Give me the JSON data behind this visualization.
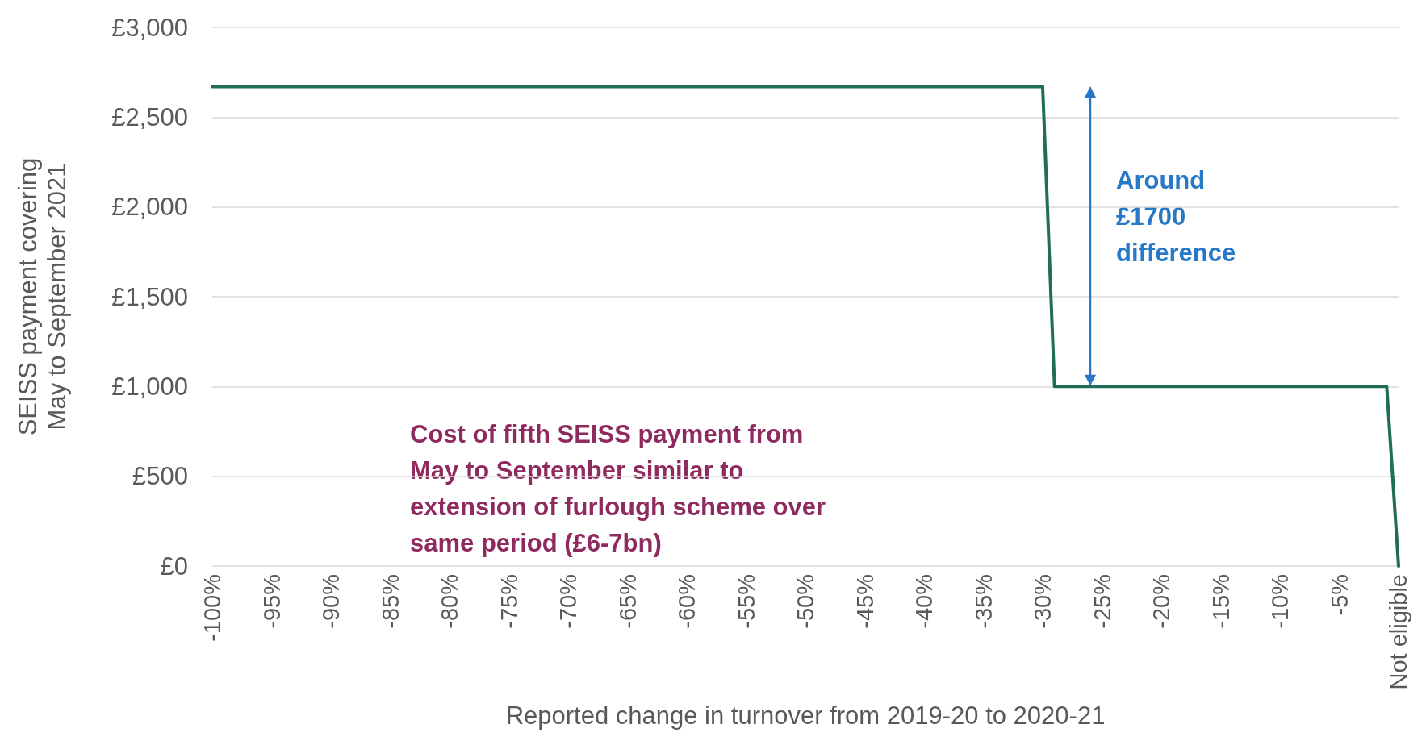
{
  "chart_data": {
    "type": "line",
    "xlabel": "Reported change in turnover from 2019-20 to 2020-21",
    "ylabel": "SEISS payment covering\nMay to September 2021",
    "categories": [
      "-100%",
      null,
      null,
      null,
      null,
      "-95%",
      null,
      null,
      null,
      null,
      "-90%",
      null,
      null,
      null,
      null,
      "-85%",
      null,
      null,
      null,
      null,
      "-80%",
      null,
      null,
      null,
      null,
      "-75%",
      null,
      null,
      null,
      null,
      "-70%",
      null,
      null,
      null,
      null,
      "-65%",
      null,
      null,
      null,
      null,
      "-60%",
      null,
      null,
      null,
      null,
      "-55%",
      null,
      null,
      null,
      null,
      "-50%",
      null,
      null,
      null,
      null,
      "-45%",
      null,
      null,
      null,
      null,
      "-40%",
      null,
      null,
      null,
      null,
      "-35%",
      null,
      null,
      null,
      null,
      "-30%",
      null,
      null,
      null,
      null,
      "-25%",
      null,
      null,
      null,
      null,
      "-20%",
      null,
      null,
      null,
      null,
      "-15%",
      null,
      null,
      null,
      null,
      "-10%",
      null,
      null,
      null,
      null,
      "-5%",
      null,
      null,
      null,
      null,
      "Not eligible"
    ],
    "series": [
      {
        "color": "#1f6e55",
        "values": [
          2670,
          2670,
          2670,
          2670,
          2670,
          2670,
          2670,
          2670,
          2670,
          2670,
          2670,
          2670,
          2670,
          2670,
          2670,
          2670,
          2670,
          2670,
          2670,
          2670,
          2670,
          2670,
          2670,
          2670,
          2670,
          2670,
          2670,
          2670,
          2670,
          2670,
          2670,
          2670,
          2670,
          2670,
          2670,
          2670,
          2670,
          2670,
          2670,
          2670,
          2670,
          2670,
          2670,
          2670,
          2670,
          2670,
          2670,
          2670,
          2670,
          2670,
          2670,
          2670,
          2670,
          2670,
          2670,
          2670,
          2670,
          2670,
          2670,
          2670,
          2670,
          2670,
          2670,
          2670,
          2670,
          2670,
          2670,
          2670,
          2670,
          2670,
          2670,
          1000,
          1000,
          1000,
          1000,
          1000,
          1000,
          1000,
          1000,
          1000,
          1000,
          1000,
          1000,
          1000,
          1000,
          1000,
          1000,
          1000,
          1000,
          1000,
          1000,
          1000,
          1000,
          1000,
          1000,
          1000,
          1000,
          1000,
          1000,
          1000,
          0
        ]
      }
    ],
    "ylim": [
      0,
      3000
    ],
    "yticks": [
      {
        "value": 0,
        "label": "£0"
      },
      {
        "value": 500,
        "label": "£500"
      },
      {
        "value": 1000,
        "label": "£1,000"
      },
      {
        "value": 1500,
        "label": "£1,500"
      },
      {
        "value": 2000,
        "label": "£2,000"
      },
      {
        "value": 2500,
        "label": "£2,500"
      },
      {
        "value": 3000,
        "label": "£3,000"
      }
    ],
    "grid": "y",
    "marker": "none",
    "line_style": "solid",
    "annotations": [
      "Around £1700 difference",
      "Cost of fifth SEISS payment from May to September similar to extension of furlough scheme over same period (£6-7bn)"
    ]
  }
}
